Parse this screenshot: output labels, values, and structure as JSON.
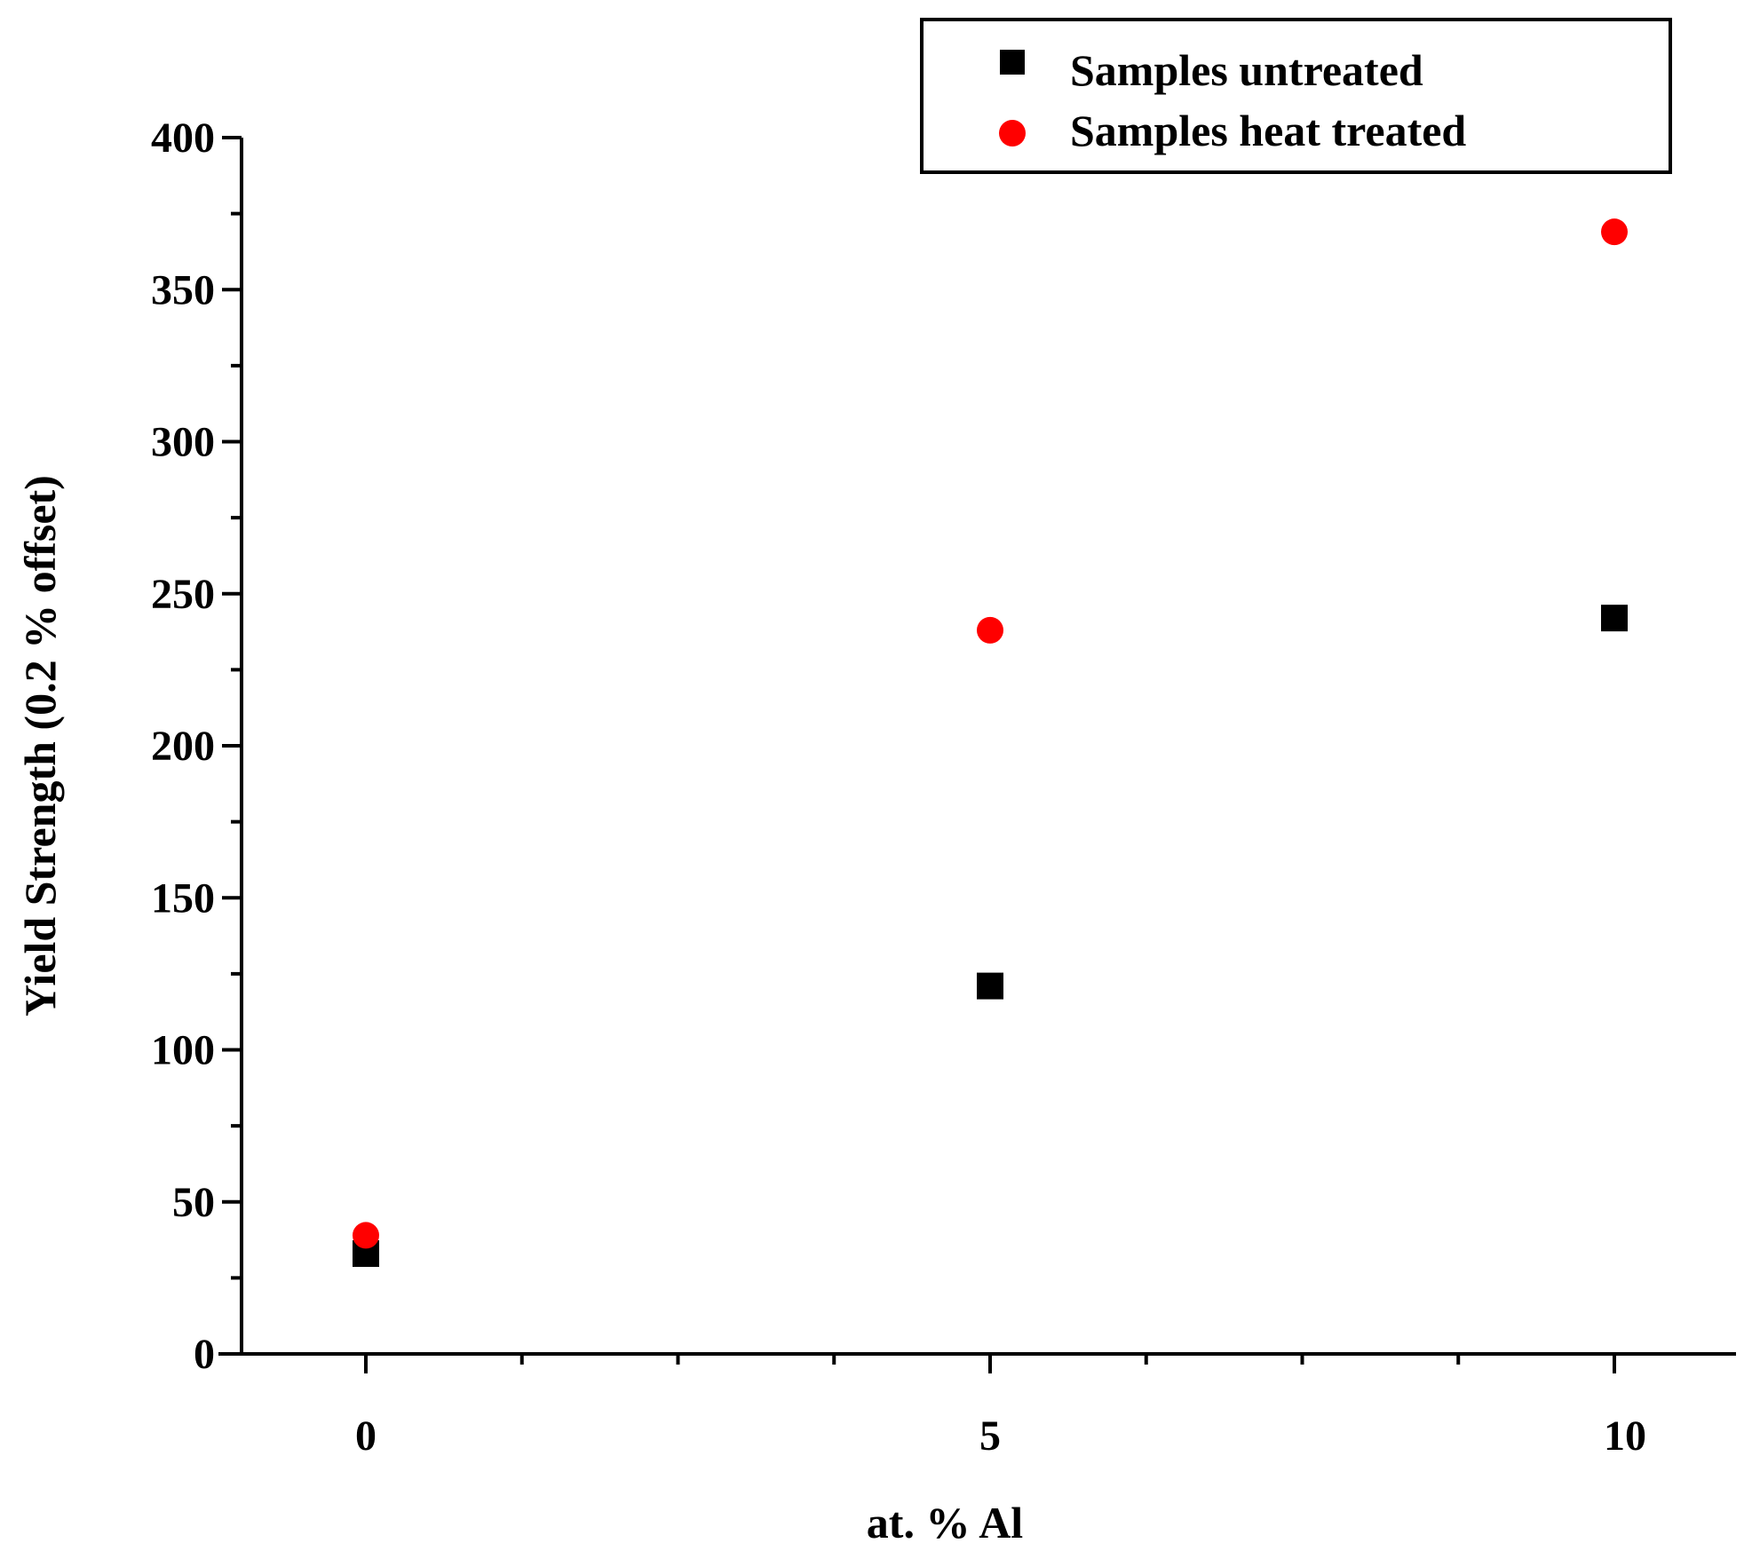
{
  "chart_data": {
    "type": "scatter",
    "xlabel": "at. % Al",
    "ylabel": "Yield Strength (0.2 % offset)",
    "xlim": [
      -1,
      11
    ],
    "ylim": [
      0,
      400
    ],
    "x_ticks": [
      0,
      5,
      10
    ],
    "x_tick_labels": [
      "0",
      "5",
      "10"
    ],
    "x_minor_ticks": [
      1.25,
      2.5,
      3.75,
      6.25,
      7.5,
      8.75
    ],
    "y_ticks": [
      0,
      50,
      100,
      150,
      200,
      250,
      300,
      350,
      400
    ],
    "y_tick_labels": [
      "0",
      "50",
      "100",
      "150",
      "200",
      "250",
      "300",
      "350",
      "400"
    ],
    "grid": false,
    "legend_position": "top-right",
    "series": [
      {
        "name": "Samples untreated",
        "marker": "square",
        "color": "#000000",
        "x": [
          0,
          5,
          10
        ],
        "y": [
          33,
          121,
          242
        ]
      },
      {
        "name": "Samples heat treated",
        "marker": "circle",
        "color": "#ff0000",
        "x": [
          0,
          5,
          10
        ],
        "y": [
          39,
          238,
          369
        ]
      }
    ]
  }
}
